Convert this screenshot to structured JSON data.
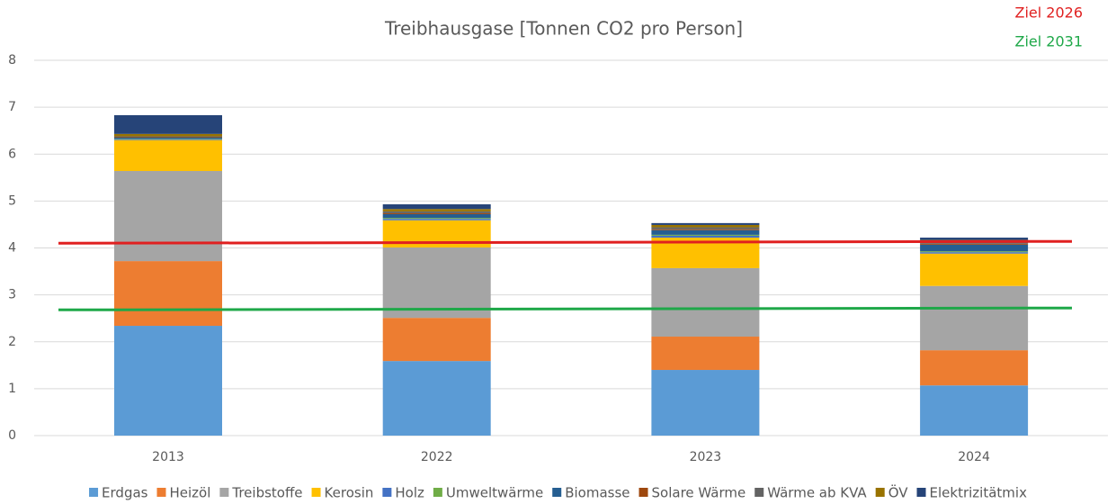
{
  "chart_data": {
    "type": "stacked_bar",
    "title": "Treibhausgase [Tonnen CO2 pro Person]",
    "categories": [
      "2013",
      "2022",
      "2023",
      "2024"
    ],
    "series": [
      {
        "name": "Erdgas",
        "color": "#5b9bd5",
        "values": [
          2.34,
          1.59,
          1.4,
          1.07
        ]
      },
      {
        "name": "Heizöl",
        "color": "#ed7d31",
        "values": [
          1.38,
          0.92,
          0.71,
          0.75
        ]
      },
      {
        "name": "Treibstoffe",
        "color": "#a5a5a5",
        "values": [
          1.92,
          1.5,
          1.46,
          1.37
        ]
      },
      {
        "name": "Kerosin",
        "color": "#ffc000",
        "values": [
          0.66,
          0.58,
          0.65,
          0.69
        ]
      },
      {
        "name": "Holz",
        "color": "#4472c4",
        "values": [
          0.02,
          0.03,
          0.04,
          0.03
        ]
      },
      {
        "name": "Umweltwärme",
        "color": "#70ad47",
        "values": [
          0.01,
          0.02,
          0.02,
          0.02
        ]
      },
      {
        "name": "Biomasse",
        "color": "#255e91",
        "values": [
          0.02,
          0.08,
          0.1,
          0.14
        ]
      },
      {
        "name": "Solare Wärme",
        "color": "#9e480e",
        "values": [
          0.01,
          0.02,
          0.02,
          0.02
        ]
      },
      {
        "name": "Wärme ab KVA",
        "color": "#636363",
        "values": [
          0.02,
          0.04,
          0.04,
          0.04
        ]
      },
      {
        "name": "ÖV",
        "color": "#997300",
        "values": [
          0.05,
          0.05,
          0.05,
          0.04
        ]
      },
      {
        "name": "Elektrizitätmix",
        "color": "#264478",
        "values": [
          0.4,
          0.1,
          0.04,
          0.05
        ]
      }
    ],
    "reference_lines": [
      {
        "name": "Ziel 2026",
        "color": "#e02020",
        "values": [
          4.1,
          4.14
        ]
      },
      {
        "name": "Ziel 2031",
        "color": "#1fa849",
        "values": [
          2.68,
          2.72
        ]
      }
    ],
    "ylim": [
      0,
      8
    ],
    "yticks": [
      0,
      1,
      2,
      3,
      4,
      5,
      6,
      7,
      8
    ],
    "grid": true,
    "legend": "bottom"
  }
}
